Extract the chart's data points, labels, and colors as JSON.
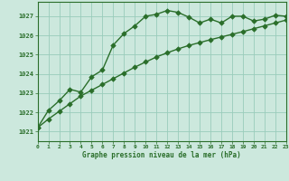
{
  "line1_x": [
    0,
    1,
    2,
    3,
    4,
    5,
    6,
    7,
    8,
    9,
    10,
    11,
    12,
    13,
    14,
    15,
    16,
    17,
    18,
    19,
    20,
    21,
    22,
    23
  ],
  "line1_y": [
    1021.2,
    1022.1,
    1022.6,
    1023.2,
    1023.05,
    1023.85,
    1024.2,
    1025.5,
    1026.1,
    1026.5,
    1027.0,
    1027.1,
    1027.3,
    1027.2,
    1026.95,
    1026.65,
    1026.85,
    1026.65,
    1027.0,
    1027.0,
    1026.75,
    1026.85,
    1027.05,
    1027.0
  ],
  "line2_x": [
    0,
    1,
    2,
    3,
    4,
    5,
    6,
    7,
    8,
    9,
    10,
    11,
    12,
    13,
    14,
    15,
    16,
    17,
    18,
    19,
    20,
    21,
    22,
    23
  ],
  "line2_y": [
    1021.2,
    1021.65,
    1022.05,
    1022.45,
    1022.85,
    1023.15,
    1023.45,
    1023.75,
    1024.05,
    1024.35,
    1024.62,
    1024.88,
    1025.1,
    1025.3,
    1025.48,
    1025.63,
    1025.78,
    1025.92,
    1026.06,
    1026.2,
    1026.35,
    1026.5,
    1026.65,
    1026.8
  ],
  "line_color": "#2a6e2a",
  "bg_color": "#cce8dd",
  "grid_color": "#99ccbb",
  "xlabel": "Graphe pression niveau de la mer (hPa)",
  "ylim": [
    1020.5,
    1027.75
  ],
  "xlim": [
    0,
    23
  ],
  "yticks": [
    1021,
    1022,
    1023,
    1024,
    1025,
    1026,
    1027
  ],
  "xticks": [
    0,
    1,
    2,
    3,
    4,
    5,
    6,
    7,
    8,
    9,
    10,
    11,
    12,
    13,
    14,
    15,
    16,
    17,
    18,
    19,
    20,
    21,
    22,
    23
  ],
  "marker": "D",
  "markersize": 2.8,
  "linewidth": 1.0
}
